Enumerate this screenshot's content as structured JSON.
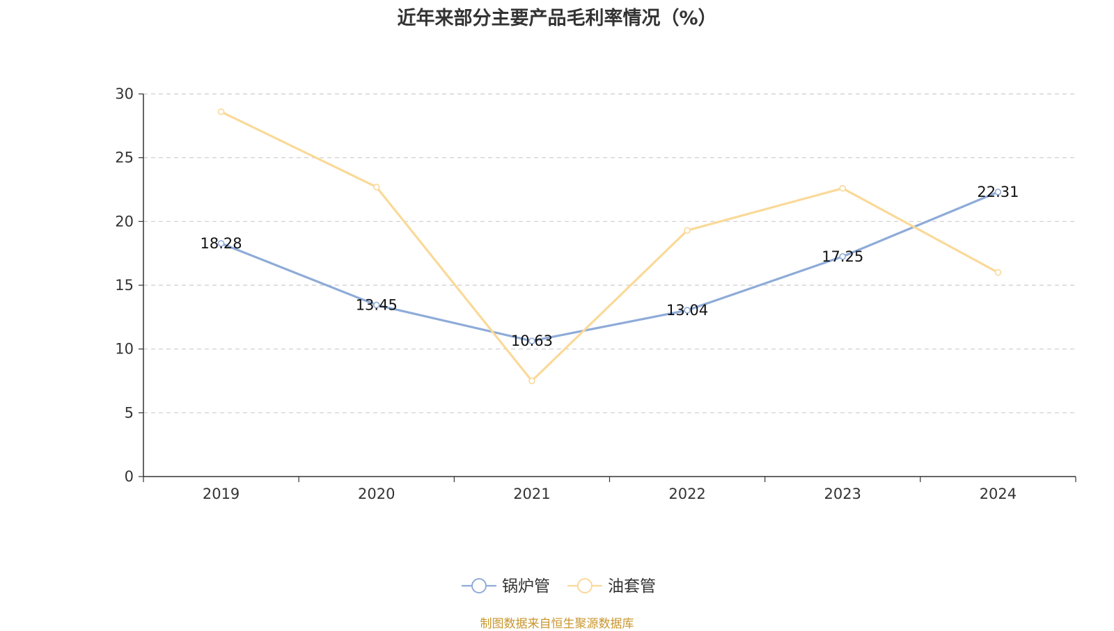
{
  "chart_data": {
    "type": "line",
    "title": "近年来部分主要产品毛利率情况（%）",
    "categories": [
      "2019",
      "2020",
      "2021",
      "2022",
      "2023",
      "2024"
    ],
    "ylim": [
      0,
      30
    ],
    "yticks": [
      0,
      5,
      10,
      15,
      20,
      25,
      30
    ],
    "grid": true,
    "legend_position": "bottom-center",
    "series": [
      {
        "name": "锅炉管",
        "color": "#8eabd8",
        "values": [
          18.28,
          13.45,
          10.63,
          13.04,
          17.25,
          22.31
        ],
        "labels": [
          "18.28",
          "13.45",
          "10.63",
          "13.04",
          "17.25",
          "22.31"
        ],
        "show_labels": true
      },
      {
        "name": "油套管",
        "color": "#fad998",
        "values": [
          28.6,
          22.7,
          7.5,
          19.3,
          22.6,
          16.0
        ],
        "show_labels": false
      }
    ]
  },
  "footer": {
    "source": "制图数据来自恒生聚源数据库"
  }
}
